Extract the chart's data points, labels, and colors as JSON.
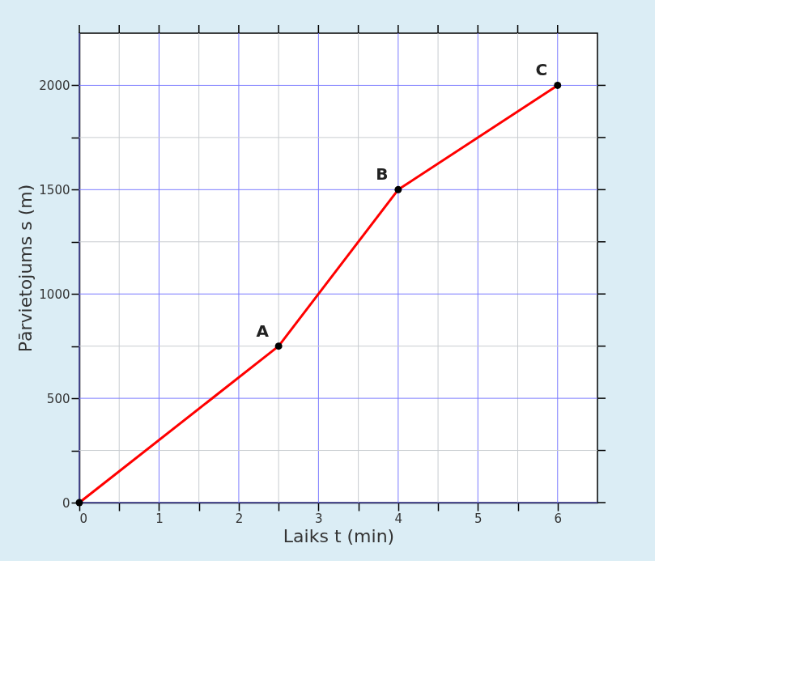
{
  "chart_data": {
    "type": "line",
    "xlabel": "Laiks t (min)",
    "ylabel": "Pārvietojums s (m)",
    "x": [
      0,
      2.5,
      4,
      6
    ],
    "series": [
      {
        "color": "#ff0000",
        "values": [
          0,
          750,
          1500,
          2000
        ]
      }
    ],
    "marker": "circle",
    "grid": true,
    "xlim": [
      0,
      6.5
    ],
    "ylim": [
      0,
      2250
    ],
    "xticks": [
      0,
      {
        "value": 0.5,
        "label": null
      },
      1,
      {
        "value": 1.5,
        "label": null
      },
      2,
      {
        "value": 2.5,
        "label": null
      },
      3,
      {
        "value": 3.5,
        "label": null
      },
      4,
      {
        "value": 4.5,
        "label": null
      },
      5,
      {
        "value": 5.5,
        "label": null
      },
      6
    ],
    "yticks": [
      0,
      {
        "value": 250,
        "label": null
      },
      500,
      {
        "value": 750,
        "label": null
      },
      1000,
      {
        "value": 1250,
        "label": null
      },
      1500,
      {
        "value": 1750,
        "label": null
      },
      2000
    ],
    "annotations": [
      {
        "text": "A",
        "x": 2.5,
        "y": 750
      },
      {
        "text": "B",
        "x": 4,
        "y": 1500
      },
      {
        "text": "C",
        "x": 6,
        "y": 2000
      }
    ]
  }
}
